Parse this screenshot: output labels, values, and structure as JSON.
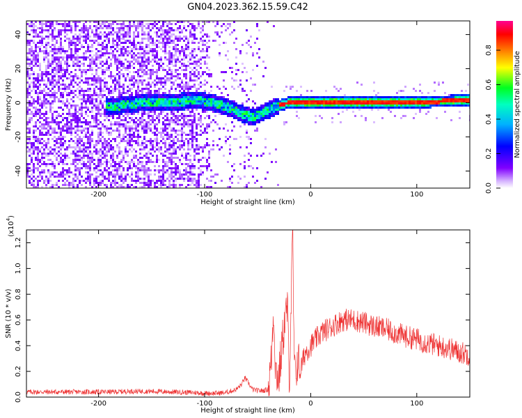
{
  "title": "GN04.2023.362.15.59.C42",
  "chart_data": [
    {
      "type": "heatmap",
      "xlabel": "Height of straight line (km)",
      "ylabel": "Frequency (Hz)",
      "xlim": [
        -268,
        150
      ],
      "ylim": [
        -50,
        48
      ],
      "xticks": [
        "-200",
        "-100",
        "0",
        "100"
      ],
      "yticks": [
        "-40",
        "-20",
        "0",
        "20",
        "40"
      ],
      "grid": false,
      "colorbar": {
        "label": "Normalized spectral amplitude",
        "range": [
          0,
          0.97
        ],
        "ticks": [
          "0.0",
          "0.2",
          "0.4",
          "0.6",
          "0.8"
        ],
        "colors": [
          "#ffffff",
          "#8000ff",
          "#0000ff",
          "#00e0ff",
          "#00ff40",
          "#ffff00",
          "#ff8000",
          "#ff0000",
          "#ff00a0"
        ]
      },
      "description_points": {
        "ridge": [
          {
            "x": -190,
            "y": -2
          },
          {
            "x": -170,
            "y": 0
          },
          {
            "x": -150,
            "y": 1
          },
          {
            "x": -130,
            "y": 1
          },
          {
            "x": -110,
            "y": 2
          },
          {
            "x": -95,
            "y": 1
          },
          {
            "x": -80,
            "y": -2
          },
          {
            "x": -65,
            "y": -6
          },
          {
            "x": -55,
            "y": -8
          },
          {
            "x": -45,
            "y": -5
          },
          {
            "x": -35,
            "y": -2
          },
          {
            "x": -20,
            "y": 1
          },
          {
            "x": 0,
            "y": 1
          },
          {
            "x": 50,
            "y": 1
          },
          {
            "x": 100,
            "y": 1
          },
          {
            "x": 150,
            "y": 2
          }
        ]
      }
    },
    {
      "type": "line",
      "xlabel": "Height of straight line (km)",
      "ylabel": "SNR (10 * v/v)",
      "yscale_label": "(x10",
      "yscale_exp": "4",
      "yscale_close": ")",
      "xlim": [
        -268,
        150
      ],
      "ylim": [
        0,
        1.3
      ],
      "xticks": [
        "-200",
        "-100",
        "0",
        "100"
      ],
      "yticks": [
        "0.0",
        "0.2",
        "0.4",
        "0.6",
        "0.8",
        "1.0",
        "1.2"
      ],
      "grid": false,
      "color": "#ee3333",
      "series": [
        {
          "x": [
            -268,
            -250,
            -230,
            -210,
            -190,
            -170,
            -150,
            -130,
            -110,
            -100,
            -90,
            -80,
            -70,
            -65,
            -62,
            -58,
            -55,
            -50,
            -45,
            -40,
            -37,
            -35,
            -33,
            -30,
            -27,
            -25,
            -22,
            -20,
            -18,
            -17,
            -16,
            -15,
            -12,
            -10,
            -5,
            0,
            10,
            20,
            30,
            40,
            50,
            60,
            70,
            80,
            90,
            100,
            110,
            120,
            130,
            140,
            150
          ],
          "y": [
            0.04,
            0.04,
            0.04,
            0.04,
            0.04,
            0.045,
            0.045,
            0.04,
            0.035,
            0.03,
            0.03,
            0.035,
            0.06,
            0.1,
            0.15,
            0.1,
            0.06,
            0.05,
            0.05,
            0.06,
            0.3,
            0.7,
            0.2,
            0.15,
            0.4,
            0.55,
            0.7,
            0.15,
            0.9,
            1.28,
            0.5,
            0.15,
            0.3,
            0.2,
            0.35,
            0.4,
            0.5,
            0.55,
            0.6,
            0.6,
            0.58,
            0.55,
            0.53,
            0.5,
            0.47,
            0.45,
            0.42,
            0.4,
            0.38,
            0.35,
            0.33
          ]
        }
      ]
    }
  ]
}
